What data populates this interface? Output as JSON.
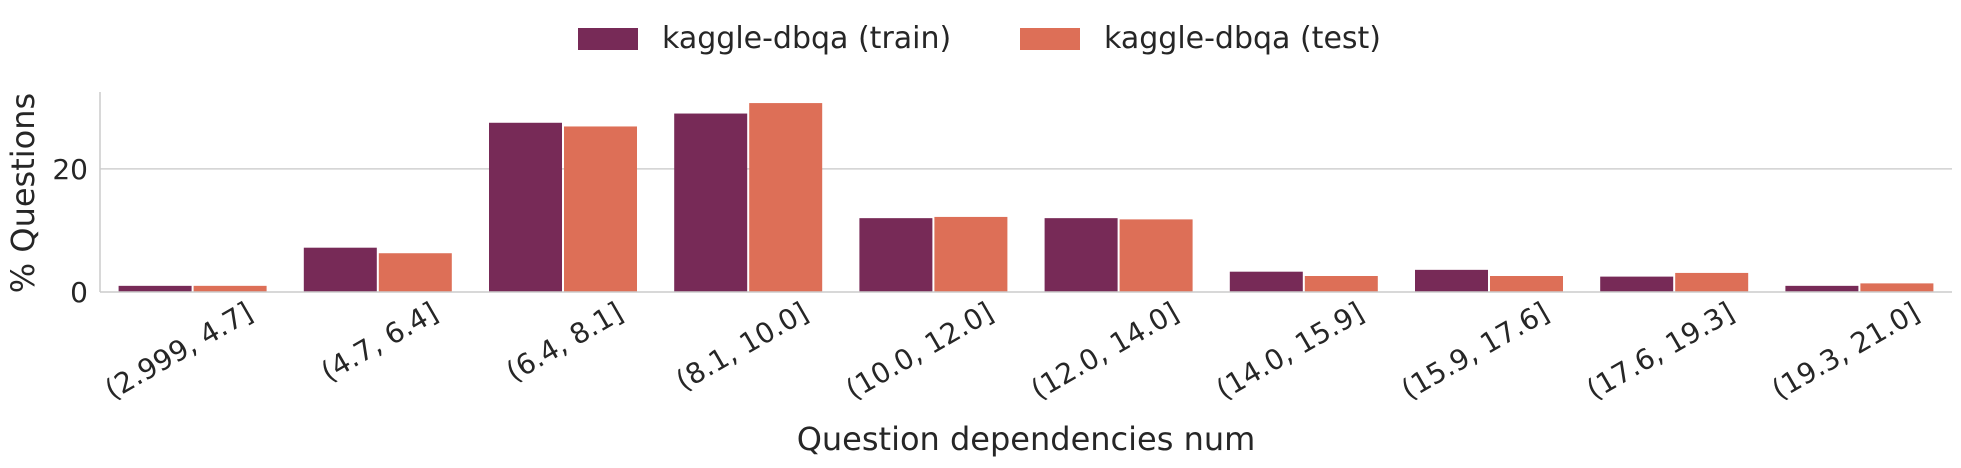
{
  "chart_data": {
    "type": "bar",
    "xlabel": "Question dependencies num",
    "ylabel": "% Questions",
    "ylim": [
      0,
      32.5
    ],
    "yticks": [
      0,
      20
    ],
    "grid": "horizontal",
    "legend_position": "top-center",
    "categories": [
      "(2.999, 4.7]",
      "(4.7, 6.4]",
      "(6.4, 8.1]",
      "(8.1, 10.0]",
      "(10.0, 12.0]",
      "(12.0, 14.0]",
      "(14.0, 15.9]",
      "(15.9, 17.6]",
      "(17.6, 19.3]",
      "(19.3, 21.0]"
    ],
    "series": [
      {
        "name": "kaggle-dbqa (train)",
        "color": "#772a57",
        "values": [
          1.0,
          7.2,
          27.5,
          29.0,
          12.0,
          12.0,
          3.3,
          3.6,
          2.5,
          1.0
        ]
      },
      {
        "name": "kaggle-dbqa (test)",
        "color": "#dd6f57",
        "values": [
          1.0,
          6.3,
          26.9,
          30.7,
          12.2,
          11.8,
          2.6,
          2.6,
          3.1,
          1.4
        ]
      }
    ]
  }
}
